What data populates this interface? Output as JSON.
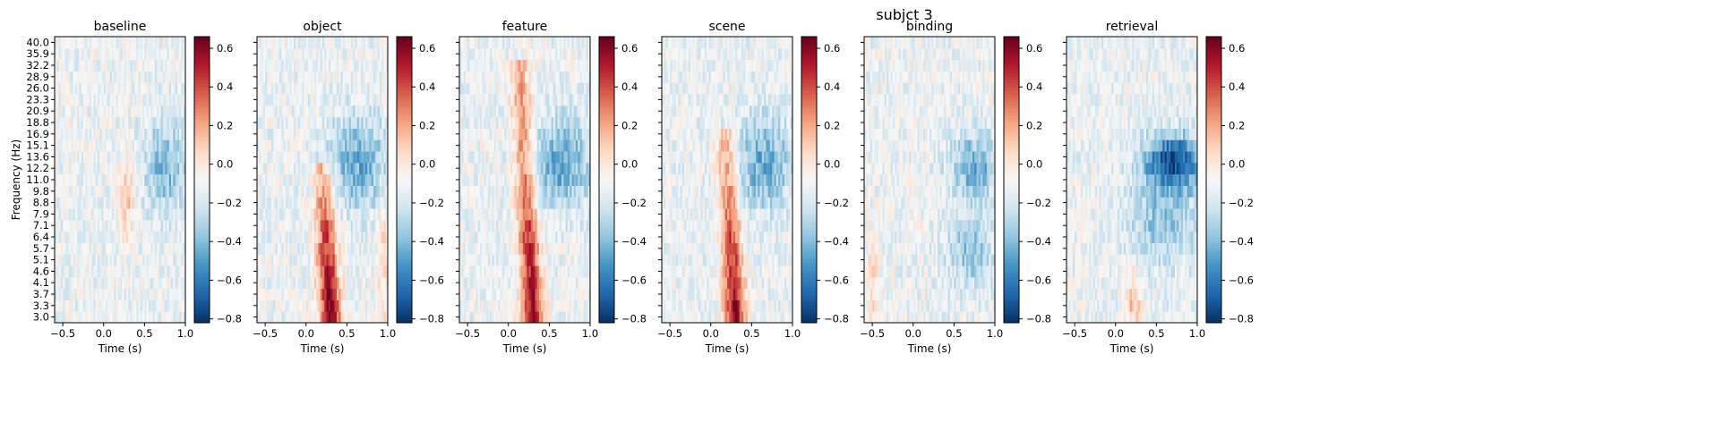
{
  "figure": {
    "suptitle": "subjct 3"
  },
  "chart_data": {
    "type": "heatmap",
    "suptitle": "subjct 3",
    "xlabel": "Time (s)",
    "ylabel": "Frequency (Hz)",
    "xlim": [
      -0.6,
      1.0
    ],
    "x_ticks": [
      -0.5,
      0.0,
      0.5,
      1.0
    ],
    "x_tick_labels": [
      "−0.5",
      "0.0",
      "0.5",
      "1.0"
    ],
    "frequencies": [
      3.0,
      3.3,
      3.7,
      4.1,
      4.6,
      5.1,
      5.7,
      6.4,
      7.1,
      7.9,
      8.8,
      9.8,
      11.0,
      12.2,
      13.6,
      15.1,
      16.9,
      18.8,
      20.9,
      23.3,
      26.0,
      28.9,
      32.2,
      35.9,
      40.0
    ],
    "frequency_labels": [
      "3.0",
      "3.3",
      "3.7",
      "4.1",
      "4.6",
      "5.1",
      "5.7",
      "6.4",
      "7.1",
      "7.9",
      "8.8",
      "9.8",
      "11.0",
      "12.2",
      "13.6",
      "15.1",
      "16.9",
      "18.8",
      "20.9",
      "23.3",
      "26.0",
      "28.9",
      "32.2",
      "35.9",
      "40.0"
    ],
    "colormap": "RdBu_r",
    "color_range": [
      -0.82,
      0.66
    ],
    "colorbar_ticks": [
      0.6,
      0.4,
      0.2,
      0.0,
      -0.2,
      -0.4,
      -0.6,
      -0.8
    ],
    "colorbar_tick_labels": [
      "0.6",
      "0.4",
      "0.2",
      "0.0",
      "−0.2",
      "−0.4",
      "−0.6",
      "−0.8"
    ],
    "panels": [
      {
        "title": "baseline",
        "show_ylabel": true
      },
      {
        "title": "object",
        "show_ylabel": false
      },
      {
        "title": "feature",
        "show_ylabel": false
      },
      {
        "title": "scene",
        "show_ylabel": false
      },
      {
        "title": "binding",
        "show_ylabel": false
      },
      {
        "title": "retrieval",
        "show_ylabel": false
      }
    ]
  }
}
